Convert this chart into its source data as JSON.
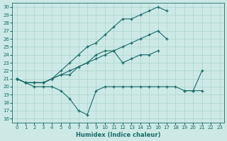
{
  "xlabel": "Humidex (Indice chaleur)",
  "xlim": [
    -0.5,
    23.5
  ],
  "ylim": [
    15.5,
    30.5
  ],
  "xticks": [
    0,
    1,
    2,
    3,
    4,
    5,
    6,
    7,
    8,
    9,
    10,
    11,
    12,
    13,
    14,
    15,
    16,
    17,
    18,
    19,
    20,
    21,
    22,
    23
  ],
  "yticks": [
    16,
    17,
    18,
    19,
    20,
    21,
    22,
    23,
    24,
    25,
    26,
    27,
    28,
    29,
    30
  ],
  "background_color": "#cce9e5",
  "grid_color": "#aad4ce",
  "line_color": "#1a6b68",
  "line1_x": [
    0,
    1,
    2,
    3,
    4,
    5,
    6,
    7,
    8,
    9,
    10,
    11,
    12,
    13,
    14,
    15,
    16,
    17,
    18,
    19,
    20,
    21,
    22,
    23
  ],
  "line1_y": [
    21.0,
    20.5,
    20.0,
    20.0,
    20.0,
    19.5,
    18.5,
    17.0,
    16.5,
    19.5,
    20.0,
    20.0,
    20.0,
    20.0,
    20.0,
    20.0,
    20.0,
    20.0,
    20.0,
    19.5,
    19.5,
    19.5,
    null,
    null
  ],
  "line2_x": [
    0,
    1,
    2,
    3,
    4,
    5,
    6,
    7,
    8,
    9,
    10,
    11,
    12,
    13,
    14,
    15,
    16,
    17,
    18,
    19,
    20,
    21,
    22,
    23
  ],
  "line2_y": [
    21.0,
    20.5,
    20.5,
    20.5,
    21.0,
    21.5,
    22.0,
    22.5,
    23.0,
    23.5,
    24.0,
    24.5,
    25.0,
    25.5,
    26.0,
    26.5,
    27.0,
    26.0,
    null,
    null,
    null,
    null,
    null,
    null
  ],
  "line3_x": [
    0,
    1,
    2,
    3,
    4,
    5,
    6,
    7,
    8,
    9,
    10,
    11,
    12,
    13,
    14,
    15,
    16,
    17,
    18,
    19,
    20,
    21,
    22,
    23
  ],
  "line3_y": [
    21.0,
    20.5,
    20.5,
    20.5,
    21.0,
    22.0,
    23.0,
    24.0,
    25.0,
    25.5,
    26.5,
    27.5,
    28.5,
    28.5,
    29.0,
    29.5,
    30.0,
    29.5,
    null,
    null,
    null,
    null,
    null,
    null
  ],
  "line4_x": [
    0,
    1,
    2,
    3,
    4,
    5,
    6,
    7,
    8,
    9,
    10,
    11,
    12,
    13,
    14,
    15,
    16,
    17,
    18,
    19,
    20,
    21,
    22,
    23
  ],
  "line4_y": [
    21.0,
    20.5,
    20.5,
    20.5,
    21.0,
    21.5,
    21.5,
    22.5,
    23.0,
    24.0,
    24.5,
    24.5,
    23.0,
    23.5,
    24.0,
    24.0,
    24.5,
    null,
    null,
    19.5,
    19.5,
    22.0,
    null,
    null
  ]
}
